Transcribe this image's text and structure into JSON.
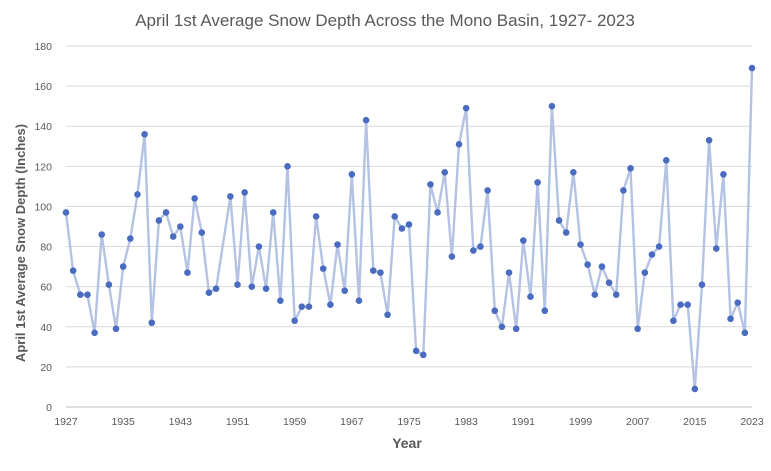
{
  "chart_data": {
    "type": "line",
    "title": "April 1st Average Snow Depth Across the Mono Basin, 1927- 2023",
    "xlabel": "Year",
    "ylabel": "April 1st Average Snow Depth (Inches)",
    "ylim": [
      0,
      180
    ],
    "yticks": [
      0,
      20,
      40,
      60,
      80,
      100,
      120,
      140,
      160,
      180
    ],
    "xlim": [
      1927,
      2023
    ],
    "xticks": [
      1927,
      1935,
      1943,
      1951,
      1959,
      1967,
      1975,
      1983,
      1991,
      1999,
      2007,
      2015,
      2023
    ],
    "grid": true,
    "legend": "none",
    "colors": {
      "line": "#b4c2e3",
      "marker": "#4a6cc0",
      "grid": "#d9d9d9",
      "text": "#595959"
    },
    "series": [
      {
        "points": [
          [
            1927,
            97
          ],
          [
            1928,
            68
          ],
          [
            1929,
            56
          ],
          [
            1930,
            56
          ],
          [
            1931,
            37
          ],
          [
            1932,
            86
          ],
          [
            1933,
            61
          ],
          [
            1934,
            39
          ],
          [
            1935,
            70
          ],
          [
            1936,
            84
          ],
          [
            1937,
            106
          ],
          [
            1938,
            136
          ],
          [
            1939,
            42
          ],
          [
            1940,
            93
          ],
          [
            1941,
            97
          ],
          [
            1942,
            85
          ],
          [
            1943,
            90
          ],
          [
            1944,
            67
          ],
          [
            1945,
            104
          ],
          [
            1946,
            87
          ],
          [
            1947,
            57
          ],
          [
            1948,
            59
          ],
          [
            1950,
            105
          ],
          [
            1951,
            61
          ],
          [
            1952,
            107
          ],
          [
            1953,
            60
          ],
          [
            1954,
            80
          ],
          [
            1955,
            59
          ],
          [
            1956,
            97
          ],
          [
            1957,
            53
          ],
          [
            1958,
            120
          ],
          [
            1959,
            43
          ],
          [
            1960,
            50
          ],
          [
            1961,
            50
          ],
          [
            1962,
            95
          ],
          [
            1963,
            69
          ],
          [
            1964,
            51
          ],
          [
            1965,
            81
          ],
          [
            1966,
            58
          ],
          [
            1967,
            116
          ],
          [
            1968,
            53
          ],
          [
            1969,
            143
          ],
          [
            1970,
            68
          ],
          [
            1971,
            67
          ],
          [
            1972,
            46
          ],
          [
            1973,
            95
          ],
          [
            1974,
            89
          ],
          [
            1975,
            91
          ],
          [
            1976,
            28
          ],
          [
            1977,
            26
          ],
          [
            1978,
            111
          ],
          [
            1979,
            97
          ],
          [
            1980,
            117
          ],
          [
            1981,
            75
          ],
          [
            1982,
            131
          ],
          [
            1983,
            149
          ],
          [
            1984,
            78
          ],
          [
            1985,
            80
          ],
          [
            1986,
            108
          ],
          [
            1987,
            48
          ],
          [
            1988,
            40
          ],
          [
            1989,
            67
          ],
          [
            1990,
            39
          ],
          [
            1991,
            83
          ],
          [
            1992,
            55
          ],
          [
            1993,
            112
          ],
          [
            1994,
            48
          ],
          [
            1995,
            150
          ],
          [
            1996,
            93
          ],
          [
            1997,
            87
          ],
          [
            1998,
            117
          ],
          [
            1999,
            81
          ],
          [
            2000,
            71
          ],
          [
            2001,
            56
          ],
          [
            2002,
            70
          ],
          [
            2003,
            62
          ],
          [
            2004,
            56
          ],
          [
            2005,
            108
          ],
          [
            2006,
            119
          ],
          [
            2007,
            39
          ],
          [
            2008,
            67
          ],
          [
            2009,
            76
          ],
          [
            2010,
            80
          ],
          [
            2011,
            123
          ],
          [
            2012,
            43
          ],
          [
            2013,
            51
          ],
          [
            2014,
            51
          ],
          [
            2015,
            9
          ],
          [
            2016,
            61
          ],
          [
            2017,
            133
          ],
          [
            2018,
            79
          ],
          [
            2019,
            116
          ],
          [
            2020,
            44
          ],
          [
            2021,
            52
          ],
          [
            2022,
            37
          ],
          [
            2023,
            169
          ]
        ]
      }
    ]
  }
}
